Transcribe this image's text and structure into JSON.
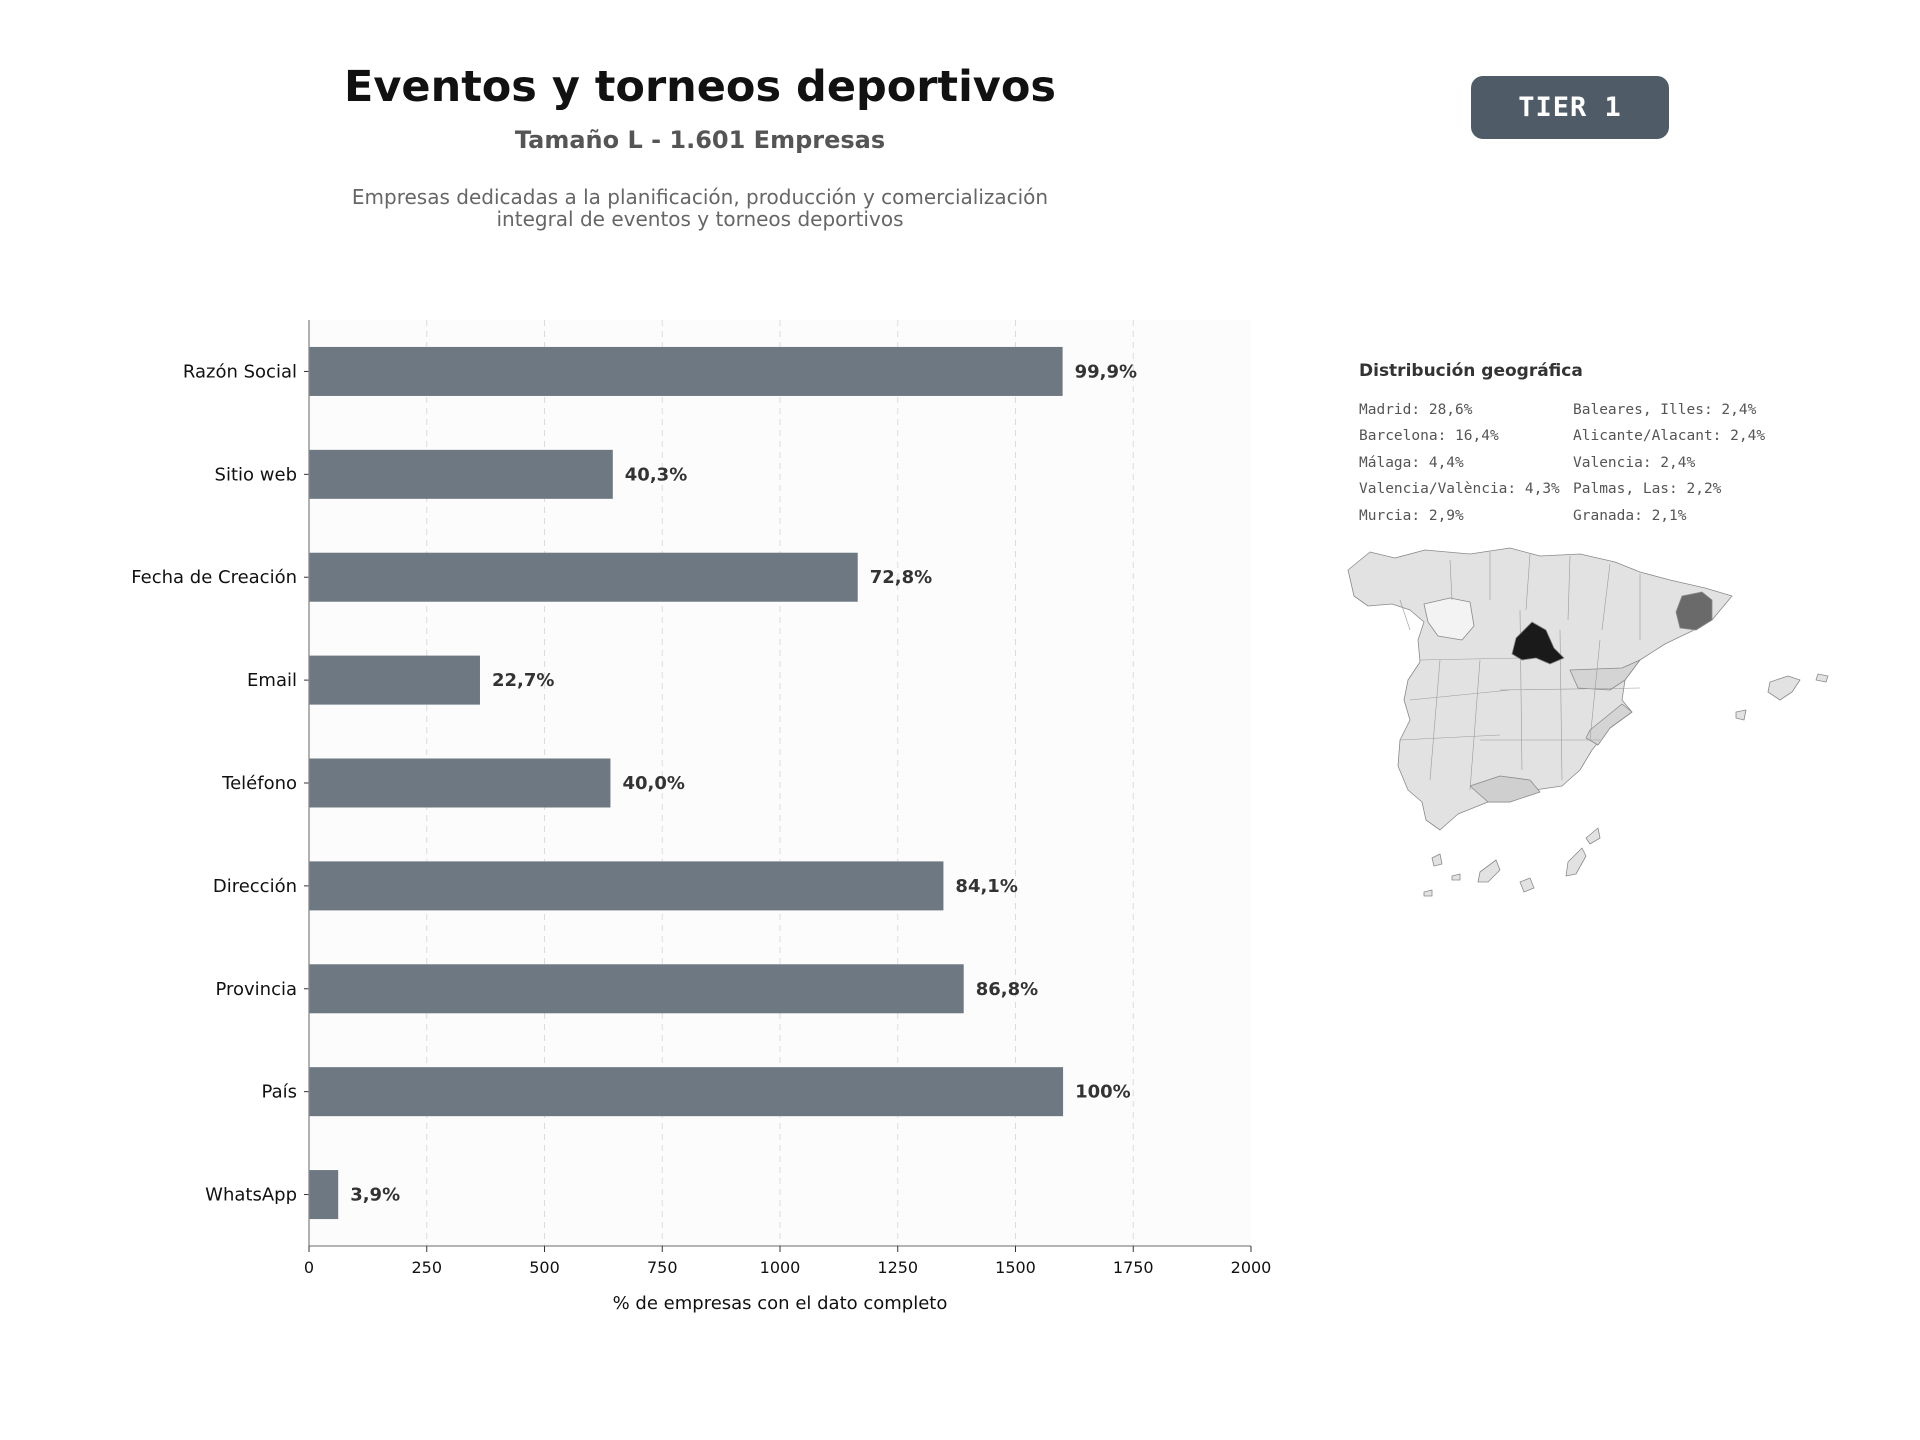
{
  "header": {
    "title": "Eventos y torneos deportivos",
    "subtitle": "Tamaño L - 1.601 Empresas",
    "description_line1": "Empresas dedicadas a la planificación, producción y comercialización",
    "description_line2": "integral de eventos y torneos deportivos",
    "badge": "TIER 1"
  },
  "chart_data": {
    "type": "bar",
    "orientation": "horizontal",
    "categories": [
      "Razón Social",
      "Sitio web",
      "Fecha de Creación",
      "Email",
      "Teléfono",
      "Dirección",
      "Provincia",
      "País",
      "WhatsApp"
    ],
    "values": [
      1600,
      645,
      1165,
      363,
      640,
      1347,
      1390,
      1601,
      62
    ],
    "labels": [
      "99,9%",
      "40,3%",
      "72,8%",
      "22,7%",
      "40,0%",
      "84,1%",
      "86,8%",
      "100%",
      "3,9%"
    ],
    "xlabel": "% de empresas con el dato completo",
    "xlim": [
      0,
      2000
    ],
    "xticks": [
      "0",
      "250",
      "500",
      "750",
      "1000",
      "1250",
      "1500",
      "1750",
      "2000"
    ],
    "grid": "vertical dashed",
    "bar_color": "#6e7882"
  },
  "geo": {
    "title": "Distribución geográfica",
    "items": [
      "Madrid: 28,6%",
      "Baleares, Illes: 2,4%",
      "Barcelona: 16,4%",
      "Alicante/Alacant: 2,4%",
      "Málaga: 4,4%",
      "Valencia: 2,4%",
      "Valencia/València: 4,3%",
      "Palmas, Las: 2,2%",
      "Murcia: 2,9%",
      "Granada: 2,1%"
    ]
  },
  "colors": {
    "badge_bg": "#4f5b67",
    "map_highest": "#1a1a1a",
    "map_high": "#6a6a6a",
    "map_mid": "#c8c8c8",
    "map_low": "#e2e2e2"
  }
}
